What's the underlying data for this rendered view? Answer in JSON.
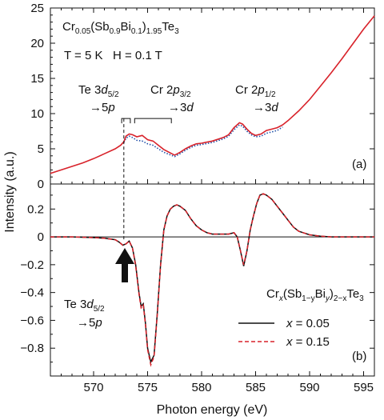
{
  "chart_data": [
    {
      "type": "line",
      "panel_label": "(a)",
      "title": "Cr₀.₀₅(Sb₀.₉Bi₀.₁)₁.₉₅Te₃",
      "title_parts": {
        "el1": "Cr",
        "sub1": "0.05",
        "open": "(Sb",
        "sub2": "0.9",
        "el2": "Bi",
        "sub3": "0.1",
        "close": ")",
        "sub4": "1.95",
        "el3": "Te",
        "sub5": "3"
      },
      "condition": "T = 5 K   H = 0.1 T",
      "xlim": [
        566,
        596
      ],
      "ylim": [
        0,
        25
      ],
      "yticks": [
        0,
        5,
        10,
        15,
        20,
        25
      ],
      "annotations": [
        {
          "pre": "Te 3",
          "ital": "d",
          "sub": "5/2",
          "line2pre": "➀5",
          "line2ital": "p",
          "line2": "→",
          "x_from": 572.6,
          "x_to": 573.4
        },
        {
          "pre": "Cr 2",
          "ital": "p",
          "sub": "3/2",
          "line2": "→3",
          "line2ital": "d",
          "x_from": 573.8,
          "x_to": 577.2
        },
        {
          "pre": "Cr 2",
          "ital": "p",
          "sub": "1/2",
          "line2": "→3",
          "line2ital": "d"
        }
      ],
      "series": [
        {
          "color": "#d8222a",
          "x": [
            566,
            567,
            568,
            569,
            570,
            571,
            572,
            572.5,
            572.8,
            573.0,
            573.3,
            573.6,
            574.0,
            574.5,
            575.0,
            575.5,
            576.0,
            576.5,
            577.0,
            577.5,
            578.0,
            578.5,
            579,
            579.5,
            580,
            581,
            582,
            582.5,
            583,
            583.5,
            583.8,
            584.2,
            584.6,
            585,
            585.5,
            586,
            586.5,
            587,
            587.5,
            588,
            589,
            590,
            591,
            592,
            593,
            594,
            595,
            596
          ],
          "values": [
            1.5,
            2.0,
            2.5,
            3.0,
            3.6,
            4.3,
            5.0,
            5.5,
            6.0,
            6.8,
            7.1,
            7.0,
            6.7,
            6.9,
            6.3,
            6.1,
            5.5,
            4.9,
            4.5,
            4.1,
            4.5,
            5.0,
            5.4,
            5.7,
            5.8,
            6.1,
            6.6,
            7.0,
            8.0,
            8.7,
            8.5,
            7.8,
            7.2,
            6.9,
            7.1,
            7.6,
            7.8,
            8.0,
            8.4,
            9.0,
            10.4,
            12.0,
            13.9,
            15.8,
            17.8,
            19.9,
            22.0,
            23.9
          ]
        },
        {
          "color": "#1f4fa8",
          "style": "dotted",
          "x": [
            572.8,
            573.0,
            573.3,
            573.6,
            574.0,
            574.5,
            575.0,
            575.5,
            576.0,
            576.5,
            577.0,
            577.5,
            578.0,
            578.5,
            579,
            579.5,
            580,
            581,
            582,
            582.5,
            583,
            583.5,
            583.8,
            584.2,
            584.6,
            585,
            585.5,
            586,
            586.5,
            587,
            587.5
          ],
          "values": [
            5.9,
            6.5,
            6.8,
            6.6,
            6.2,
            6.1,
            5.7,
            5.5,
            5.0,
            4.5,
            4.2,
            3.9,
            4.3,
            4.8,
            5.2,
            5.5,
            5.6,
            5.9,
            6.4,
            6.8,
            7.7,
            8.4,
            8.2,
            7.5,
            7.0,
            6.7,
            6.8,
            7.2,
            7.4,
            7.6,
            8.1
          ]
        }
      ]
    },
    {
      "type": "line",
      "panel_label": "(b)",
      "xlabel": "Photon energy (eV)",
      "ylabel": "Intensity (a.u.)",
      "xlim": [
        566,
        596
      ],
      "ylim": [
        -1.0,
        0.38
      ],
      "xticks": [
        570,
        575,
        580,
        585,
        590,
        595
      ],
      "yticks": [
        -0.8,
        -0.6,
        -0.4,
        -0.2,
        0,
        0.2
      ],
      "tick_labels_y": [
        "−0.8",
        "−0.6",
        "−0.4",
        "−0.2",
        "0",
        "0.2"
      ],
      "annotation": {
        "pre": "Te 3",
        "ital": "d",
        "sub": "5/2",
        "line2": "→5",
        "line2ital": "p"
      },
      "legend": {
        "title_parts": {
          "a": "Cr",
          "b": "x",
          "c": "(Sb",
          "d": "1−y",
          "e": "Bi",
          "f": "y",
          "g": ")",
          "h": "2−x",
          "i": "Te",
          "j": "3"
        },
        "placement": "bottom-right",
        "entries": [
          {
            "ital": "x",
            "text": " = 0.05",
            "color": "#111111",
            "style": "solid"
          },
          {
            "ital": "x",
            "text": " = 0.15",
            "color": "#d8222a",
            "style": "dashed"
          }
        ]
      },
      "series": [
        {
          "name": "x = 0.05",
          "color": "#111111",
          "x": [
            566,
            568,
            570,
            571,
            572,
            572.4,
            572.7,
            573.0,
            573.3,
            573.6,
            573.9,
            574.2,
            574.4,
            574.6,
            574.8,
            575.0,
            575.3,
            575.6,
            575.9,
            576.2,
            576.5,
            576.8,
            577.1,
            577.4,
            577.7,
            578.0,
            578.5,
            579,
            579.5,
            580,
            580.5,
            581,
            581.5,
            582,
            582.5,
            583,
            583.3,
            583.6,
            583.9,
            584.2,
            584.5,
            584.8,
            585.1,
            585.4,
            585.7,
            586.0,
            586.5,
            587,
            587.5,
            588,
            588.5,
            589,
            590,
            591,
            592,
            593,
            594,
            595,
            596
          ],
          "values": [
            0,
            0,
            -0.005,
            -0.01,
            -0.02,
            -0.04,
            -0.06,
            -0.05,
            -0.03,
            -0.08,
            -0.2,
            -0.4,
            -0.5,
            -0.48,
            -0.62,
            -0.8,
            -0.9,
            -0.85,
            -0.55,
            -0.2,
            0.05,
            0.15,
            0.2,
            0.22,
            0.23,
            0.22,
            0.19,
            0.13,
            0.08,
            0.05,
            0.03,
            0.02,
            0.02,
            0.02,
            0.02,
            0.03,
            0.0,
            -0.1,
            -0.21,
            -0.1,
            0.05,
            0.15,
            0.24,
            0.3,
            0.31,
            0.3,
            0.27,
            0.22,
            0.17,
            0.12,
            0.07,
            0.04,
            0.015,
            0.005,
            0.0,
            0,
            0,
            0,
            0
          ]
        },
        {
          "name": "x = 0.15",
          "color": "#d8222a",
          "style": "dashed",
          "x": [
            566,
            568,
            570,
            571,
            572,
            572.4,
            572.7,
            573.0,
            573.3,
            573.6,
            573.9,
            574.2,
            574.4,
            574.6,
            574.8,
            575.0,
            575.3,
            575.6,
            575.9,
            576.2,
            576.5,
            576.8,
            577.1,
            577.4,
            577.7,
            578.0,
            578.5,
            579,
            579.5,
            580,
            580.5,
            581,
            581.5,
            582,
            582.5,
            583,
            583.3,
            583.6,
            583.9,
            584.2,
            584.5,
            584.8,
            585.1,
            585.4,
            585.7,
            586.0,
            586.5,
            587,
            587.5,
            588,
            588.5,
            589,
            590,
            591,
            592,
            593,
            594,
            595,
            596
          ],
          "values": [
            0,
            0,
            -0.005,
            -0.01,
            -0.02,
            -0.04,
            -0.06,
            -0.05,
            -0.03,
            -0.08,
            -0.21,
            -0.41,
            -0.51,
            -0.49,
            -0.63,
            -0.81,
            -0.92,
            -0.86,
            -0.56,
            -0.21,
            0.05,
            0.15,
            0.2,
            0.22,
            0.23,
            0.22,
            0.19,
            0.13,
            0.08,
            0.05,
            0.03,
            0.02,
            0.02,
            0.02,
            0.02,
            0.03,
            0.0,
            -0.1,
            -0.2,
            -0.1,
            0.05,
            0.15,
            0.24,
            0.3,
            0.31,
            0.3,
            0.27,
            0.22,
            0.17,
            0.12,
            0.07,
            0.04,
            0.015,
            0.005,
            0.0,
            0,
            0,
            0,
            0
          ]
        }
      ]
    }
  ]
}
